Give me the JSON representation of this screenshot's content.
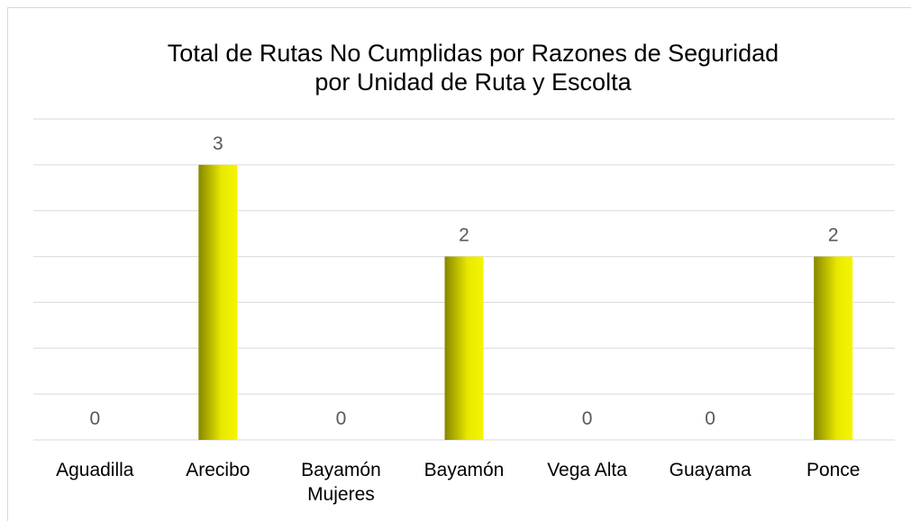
{
  "chart_data": {
    "type": "bar",
    "title": "Total de Rutas No Cumplidas por Razones de Seguridad por Unidad de Ruta y Escolta",
    "categories": [
      "Aguadilla",
      "Arecibo",
      "Bayamón Mujeres",
      "Bayamón",
      "Vega Alta",
      "Guayama",
      "Ponce"
    ],
    "values": [
      0,
      3,
      0,
      2,
      0,
      0,
      2
    ],
    "color": "#f5f500",
    "ylim": [
      0,
      3.5
    ],
    "yticks": [
      0,
      0.5,
      1,
      1.5,
      2,
      2.5,
      3,
      3.5
    ],
    "grid": true
  }
}
